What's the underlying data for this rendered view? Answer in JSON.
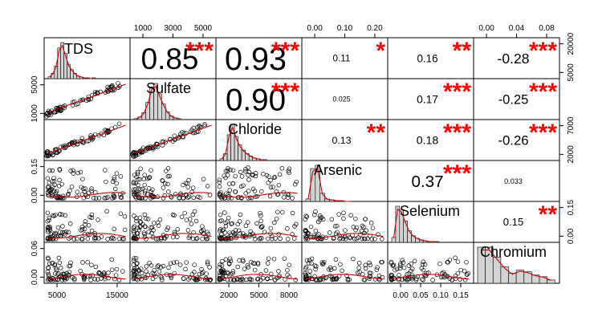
{
  "chart_data": {
    "type": "scatter-matrix",
    "variables": [
      "TDS",
      "Sulfate",
      "Chloride",
      "Arsenic",
      "Selenium",
      "Chromium"
    ],
    "correlations": [
      {
        "row": 0,
        "col": 1,
        "value": "0.85",
        "stars": "***"
      },
      {
        "row": 0,
        "col": 2,
        "value": "0.93",
        "stars": "***"
      },
      {
        "row": 0,
        "col": 3,
        "value": "0.11",
        "stars": "*"
      },
      {
        "row": 0,
        "col": 4,
        "value": "0.16",
        "stars": "**"
      },
      {
        "row": 0,
        "col": 5,
        "value": "-0.28",
        "stars": "***"
      },
      {
        "row": 1,
        "col": 2,
        "value": "0.90",
        "stars": "***"
      },
      {
        "row": 1,
        "col": 3,
        "value": "0.025",
        "stars": ""
      },
      {
        "row": 1,
        "col": 4,
        "value": "0.17",
        "stars": "***"
      },
      {
        "row": 1,
        "col": 5,
        "value": "-0.25",
        "stars": "***"
      },
      {
        "row": 2,
        "col": 3,
        "value": "0.13",
        "stars": "**"
      },
      {
        "row": 2,
        "col": 4,
        "value": "0.18",
        "stars": "***"
      },
      {
        "row": 2,
        "col": 5,
        "value": "-0.26",
        "stars": "***"
      },
      {
        "row": 3,
        "col": 4,
        "value": "0.37",
        "stars": "***"
      },
      {
        "row": 3,
        "col": 5,
        "value": "0.033",
        "stars": ""
      },
      {
        "row": 4,
        "col": 5,
        "value": "0.15",
        "stars": "**"
      }
    ],
    "axes": {
      "top": [
        {
          "col": 1,
          "ticks": [
            "1000",
            "3000",
            "5000"
          ]
        },
        {
          "col": 3,
          "ticks": [
            "0.00",
            "0.10",
            "0.20"
          ]
        },
        {
          "col": 5,
          "ticks": [
            "0.00",
            "0.04",
            "0.08"
          ]
        }
      ],
      "bottom": [
        {
          "col": 0,
          "ticks": [
            "5000",
            "15000"
          ]
        },
        {
          "col": 2,
          "ticks": [
            "2000",
            "5000",
            "8000"
          ]
        },
        {
          "col": 4,
          "ticks": [
            "0.00",
            "0.05",
            "0.10",
            "0.15"
          ]
        }
      ],
      "left": [
        {
          "row": 1,
          "ticks": [
            "1000",
            "5000"
          ]
        },
        {
          "row": 3,
          "ticks": [
            "0.00",
            "0.15"
          ]
        },
        {
          "row": 5,
          "ticks": [
            "0.00",
            "0.06"
          ]
        }
      ],
      "right": [
        {
          "row": 0,
          "ticks": [
            "5000",
            "20000"
          ]
        },
        {
          "row": 2,
          "ticks": [
            "2000",
            "7000"
          ]
        },
        {
          "row": 4,
          "ticks": [
            "0.00",
            "0.15"
          ]
        }
      ]
    },
    "colors": {
      "stars": "#ff0000",
      "smooth": "#d00000",
      "histogram": "#d3d3d3",
      "points": "#000000"
    }
  }
}
